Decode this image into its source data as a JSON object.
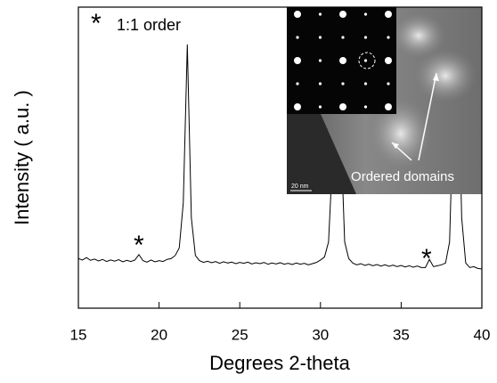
{
  "chart_data": {
    "type": "line",
    "x_label": "Degrees 2-theta",
    "y_label": "Intensity ( a.u. )",
    "legend": {
      "marker": "*",
      "label": "1:1 order"
    },
    "annotations": [
      "*",
      "*"
    ],
    "inset_labels": [
      "Ordered domains",
      "20 nm"
    ],
    "color": "#000000",
    "xlim": [
      15,
      40
    ],
    "xticks": [
      15,
      20,
      25,
      30,
      35,
      40
    ],
    "ylim": [
      0,
      100
    ],
    "x": [
      15,
      15.25,
      15.5,
      15.75,
      16,
      16.25,
      16.5,
      16.75,
      17,
      17.25,
      17.5,
      17.75,
      18,
      18.25,
      18.5,
      18.75,
      19,
      19.25,
      19.5,
      19.75,
      20,
      20.25,
      20.5,
      20.75,
      21,
      21.25,
      21.5,
      21.75,
      22,
      22.25,
      22.5,
      22.75,
      23,
      23.25,
      23.5,
      23.75,
      24,
      24.25,
      24.5,
      24.75,
      25,
      25.25,
      25.5,
      25.75,
      26,
      26.25,
      26.5,
      26.75,
      27,
      27.25,
      27.5,
      27.75,
      28,
      28.25,
      28.5,
      28.75,
      29,
      29.25,
      29.5,
      29.75,
      30,
      30.25,
      30.5,
      30.75,
      31,
      31.25,
      31.5,
      31.75,
      32,
      32.25,
      32.5,
      32.75,
      33,
      33.25,
      33.5,
      33.75,
      34,
      34.25,
      34.5,
      34.75,
      35,
      35.25,
      35.5,
      35.75,
      36,
      36.25,
      36.5,
      36.75,
      37,
      37.25,
      37.5,
      37.75,
      38,
      38.25,
      38.5,
      38.75,
      39,
      39.25,
      39.5,
      39.75,
      40
    ],
    "values": [
      16.5,
      16,
      16.8,
      15.9,
      16.3,
      15.7,
      16.2,
      15.5,
      16,
      15.6,
      16.1,
      15.4,
      15.9,
      15.5,
      16,
      17.8,
      15.8,
      15.3,
      16,
      15.4,
      15.8,
      15.5,
      16.2,
      16.5,
      17.5,
      20,
      35,
      87.6,
      30,
      17.5,
      15.8,
      15.2,
      15.6,
      15.1,
      15.5,
      14.9,
      15.4,
      15,
      15.3,
      14.8,
      15.2,
      14.9,
      15.3,
      14.7,
      15.1,
      14.8,
      15.2,
      14.6,
      15,
      14.7,
      15.1,
      14.6,
      14.9,
      14.5,
      15,
      14.6,
      14.9,
      14.4,
      14.8,
      15.2,
      16,
      17,
      22,
      50,
      95,
      60,
      22,
      16.5,
      15,
      14.4,
      14.8,
      14.2,
      14.6,
      14.1,
      14.5,
      14,
      14.4,
      13.9,
      14.3,
      13.8,
      14.2,
      13.7,
      14.1,
      13.6,
      14,
      13.5,
      13.5,
      16.2,
      13.8,
      14.1,
      14.4,
      15,
      22,
      70,
      90,
      30,
      15,
      13.5,
      13.8,
      13.2,
      13
    ]
  }
}
